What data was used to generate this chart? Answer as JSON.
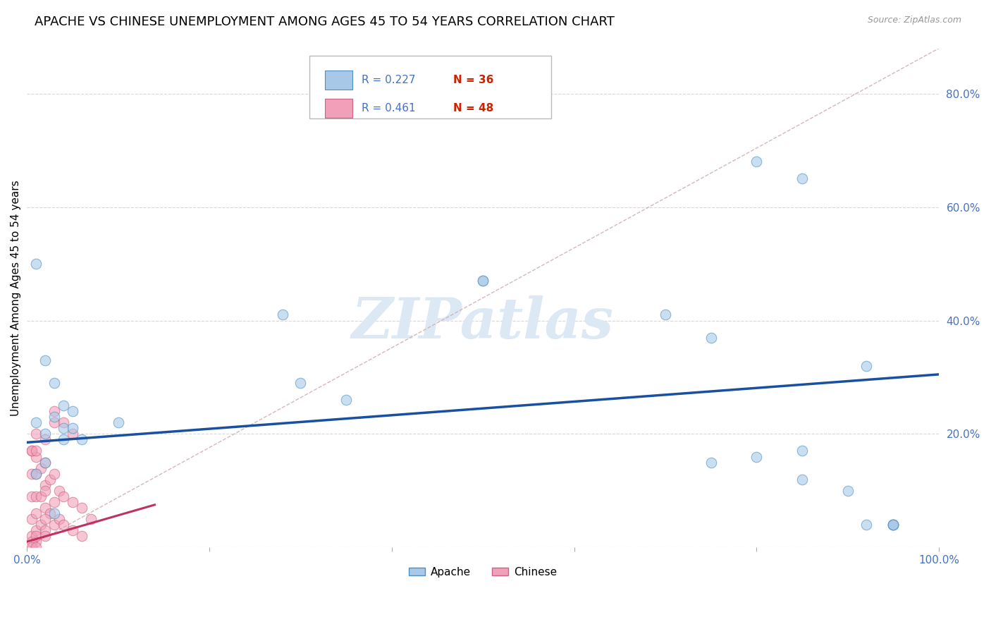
{
  "title": "APACHE VS CHINESE UNEMPLOYMENT AMONG AGES 45 TO 54 YEARS CORRELATION CHART",
  "source": "Source: ZipAtlas.com",
  "ylabel": "Unemployment Among Ages 45 to 54 years",
  "xlim": [
    0,
    1.0
  ],
  "ylim": [
    0,
    0.88
  ],
  "xticks": [
    0.0,
    0.2,
    0.4,
    0.6,
    0.8,
    1.0
  ],
  "xticklabels": [
    "0.0%",
    "",
    "",
    "",
    "",
    "100.0%"
  ],
  "yticks": [
    0.0,
    0.2,
    0.4,
    0.6,
    0.8
  ],
  "yticklabels": [
    "",
    "20.0%",
    "40.0%",
    "60.0%",
    "80.0%"
  ],
  "apache_color": "#a8c8e8",
  "chinese_color": "#f0a0b8",
  "apache_edge": "#5090c0",
  "chinese_edge": "#d06080",
  "trend_apache_color": "#1a50a0",
  "trend_chinese_color": "#c03060",
  "diagonal_color": "#d0b0b0",
  "apache_x": [
    0.01,
    0.02,
    0.03,
    0.04,
    0.04,
    0.05,
    0.05,
    0.06,
    0.01,
    0.02,
    0.03,
    0.04,
    0.1,
    0.28,
    0.3,
    0.35,
    0.7,
    0.75,
    0.8,
    0.85,
    0.9,
    0.92,
    0.95,
    0.95,
    0.8,
    0.85,
    0.92,
    0.5,
    0.5,
    0.75,
    0.85,
    0.95,
    0.95,
    0.02,
    0.01,
    0.03
  ],
  "apache_y": [
    0.5,
    0.33,
    0.29,
    0.25,
    0.21,
    0.21,
    0.24,
    0.19,
    0.22,
    0.2,
    0.23,
    0.19,
    0.22,
    0.41,
    0.29,
    0.26,
    0.41,
    0.37,
    0.16,
    0.12,
    0.1,
    0.04,
    0.04,
    0.04,
    0.68,
    0.65,
    0.32,
    0.47,
    0.47,
    0.15,
    0.17,
    0.04,
    0.04,
    0.15,
    0.13,
    0.06
  ],
  "chinese_x": [
    0.005,
    0.005,
    0.005,
    0.005,
    0.005,
    0.01,
    0.01,
    0.01,
    0.01,
    0.01,
    0.01,
    0.015,
    0.015,
    0.015,
    0.02,
    0.02,
    0.02,
    0.02,
    0.025,
    0.025,
    0.03,
    0.03,
    0.03,
    0.035,
    0.035,
    0.04,
    0.04,
    0.05,
    0.05,
    0.06,
    0.06,
    0.07,
    0.005,
    0.005,
    0.01,
    0.01,
    0.02,
    0.02,
    0.02,
    0.03,
    0.04,
    0.05,
    0.005,
    0.01,
    0.01,
    0.02,
    0.03
  ],
  "chinese_y": [
    0.17,
    0.13,
    0.09,
    0.05,
    0.02,
    0.16,
    0.13,
    0.09,
    0.06,
    0.03,
    0.01,
    0.14,
    0.09,
    0.04,
    0.15,
    0.11,
    0.07,
    0.03,
    0.12,
    0.06,
    0.13,
    0.08,
    0.04,
    0.1,
    0.05,
    0.09,
    0.04,
    0.08,
    0.03,
    0.07,
    0.02,
    0.05,
    0.01,
    0.0,
    0.02,
    0.0,
    0.1,
    0.05,
    0.02,
    0.22,
    0.22,
    0.2,
    0.17,
    0.2,
    0.17,
    0.19,
    0.24
  ],
  "apache_trend_x0": 0.0,
  "apache_trend_x1": 1.0,
  "apache_trend_y0": 0.185,
  "apache_trend_y1": 0.305,
  "chinese_trend_x0": 0.0,
  "chinese_trend_x1": 0.14,
  "chinese_trend_y0": 0.01,
  "chinese_trend_y1": 0.075,
  "marker_size": 110,
  "alpha_scatter": 0.6,
  "background_color": "#ffffff",
  "grid_color": "#d8d8d8",
  "title_fontsize": 13,
  "axis_fontsize": 11,
  "tick_fontsize": 11,
  "tick_color_blue": "#4472c4",
  "legend_r_color": "#4472c4",
  "legend_n_color": "#cc2200",
  "watermark_color": "#dce8f4"
}
